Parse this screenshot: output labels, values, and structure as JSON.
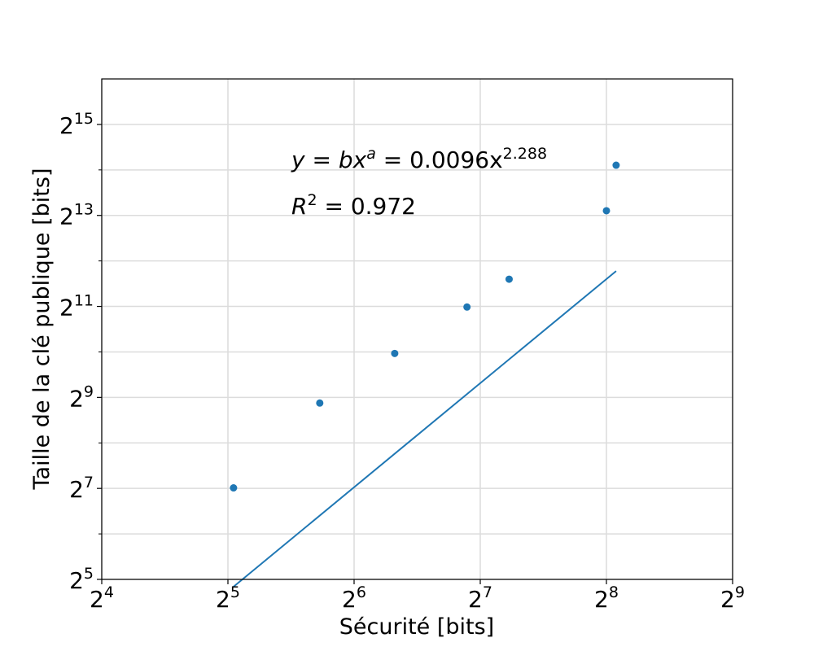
{
  "chart_data": {
    "type": "scatter",
    "title": "",
    "xlabel": "Sécurité [bits]",
    "ylabel": "Taille de la clé publique [bits]",
    "x_scale": "log2",
    "y_scale": "log2",
    "xlim": [
      16,
      512
    ],
    "ylim": [
      32,
      65536
    ],
    "x_ticks": [
      {
        "value": 16,
        "base": "2",
        "exp": "4"
      },
      {
        "value": 32,
        "base": "2",
        "exp": "5"
      },
      {
        "value": 64,
        "base": "2",
        "exp": "6"
      },
      {
        "value": 128,
        "base": "2",
        "exp": "7"
      },
      {
        "value": 256,
        "base": "2",
        "exp": "8"
      },
      {
        "value": 512,
        "base": "2",
        "exp": "9"
      }
    ],
    "y_ticks": [
      {
        "value": 32,
        "base": "2",
        "exp": "5"
      },
      {
        "value": 128,
        "base": "2",
        "exp": "7"
      },
      {
        "value": 512,
        "base": "2",
        "exp": "9"
      },
      {
        "value": 2048,
        "base": "2",
        "exp": "11"
      },
      {
        "value": 8192,
        "base": "2",
        "exp": "13"
      },
      {
        "value": 32768,
        "base": "2",
        "exp": "15"
      }
    ],
    "y_minor_ticks": [
      64,
      256,
      1024,
      4096,
      16384
    ],
    "grid": true,
    "series": [
      {
        "color": "#1f77b4",
        "x": [
          33,
          53,
          80,
          119,
          150,
          256,
          270
        ],
        "y": [
          129,
          470,
          1000,
          2030,
          3100,
          8800,
          17600
        ]
      }
    ],
    "fit": {
      "color": "#1f77b4",
      "b": 0.0096,
      "a": 2.288,
      "x_range": [
        33,
        270
      ]
    },
    "annotations": {
      "equation": {
        "lhs": "y",
        "mid": "bx",
        "mid_exp": "a",
        "rhs": "0.0096x",
        "rhs_exp": "2.288"
      },
      "r2": {
        "symbol": "R",
        "exp": "2",
        "value": " = 0.972"
      }
    }
  }
}
